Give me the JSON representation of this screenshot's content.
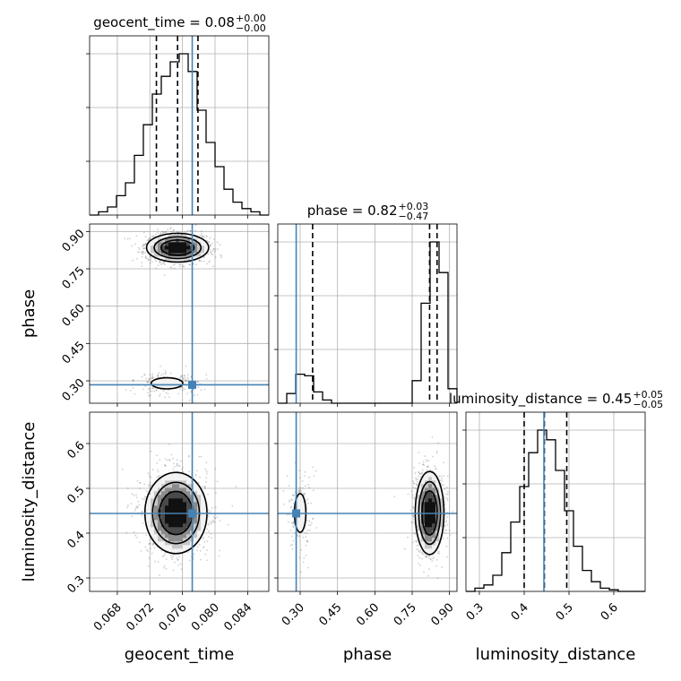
{
  "chart_data": {
    "type": "corner",
    "parameters": [
      "geocent_time",
      "phase",
      "luminosity_distance"
    ],
    "truth": {
      "geocent_time": 0.0772,
      "phase": 0.284,
      "luminosity_distance": 0.444
    },
    "titles": [
      {
        "label": "geocent_time = 0.08",
        "sup": "+0.00",
        "sub": "−0.00"
      },
      {
        "label": "phase = 0.82",
        "sup": "+0.03",
        "sub": "−0.47"
      },
      {
        "label": "luminosity_distance = 0.45",
        "sup": "+0.05",
        "sub": "−0.05"
      }
    ],
    "axes": {
      "geocent_time": {
        "range": [
          0.0646,
          0.0866
        ],
        "ticks": [
          0.068,
          0.072,
          0.076,
          0.08,
          0.084
        ],
        "tick_labels": [
          "0.068",
          "0.072",
          "0.076",
          "0.080",
          "0.084"
        ]
      },
      "phase": {
        "range": [
          0.21,
          0.93
        ],
        "ticks": [
          0.3,
          0.45,
          0.6,
          0.75,
          0.9
        ],
        "tick_labels": [
          "0.30",
          "0.45",
          "0.60",
          "0.75",
          "0.90"
        ]
      },
      "luminosity_distance": {
        "range": [
          0.27,
          0.67
        ],
        "ticks": [
          0.3,
          0.4,
          0.5,
          0.6
        ],
        "tick_labels": [
          "0.3",
          "0.4",
          "0.5",
          "0.6"
        ]
      }
    },
    "histograms": {
      "geocent_time": {
        "edges": [
          0.0646,
          0.0657,
          0.0668,
          0.0679,
          0.069,
          0.0701,
          0.0712,
          0.0723,
          0.0734,
          0.0745,
          0.0756,
          0.0767,
          0.0778,
          0.0789,
          0.08,
          0.0811,
          0.0822,
          0.0833,
          0.0844,
          0.0855,
          0.0866
        ],
        "counts": [
          0.0,
          0.02,
          0.05,
          0.12,
          0.2,
          0.37,
          0.56,
          0.75,
          0.86,
          0.95,
          1.0,
          0.89,
          0.65,
          0.45,
          0.3,
          0.16,
          0.08,
          0.04,
          0.02,
          0.0
        ],
        "quantiles": [
          0.0728,
          0.0754,
          0.0779
        ]
      },
      "phase": {
        "edges": [
          0.21,
          0.246,
          0.282,
          0.318,
          0.354,
          0.39,
          0.426,
          0.462,
          0.498,
          0.534,
          0.57,
          0.606,
          0.642,
          0.678,
          0.714,
          0.75,
          0.786,
          0.822,
          0.858,
          0.894,
          0.93
        ],
        "counts": [
          0.0,
          0.06,
          0.18,
          0.17,
          0.07,
          0.02,
          0.0,
          0.0,
          0.0,
          0.0,
          0.0,
          0.0,
          0.0,
          0.0,
          0.0,
          0.14,
          0.62,
          1.0,
          0.81,
          0.09
        ],
        "quantiles": [
          0.35,
          0.82,
          0.85
        ]
      },
      "luminosity_distance": {
        "edges": [
          0.27,
          0.29,
          0.31,
          0.33,
          0.35,
          0.37,
          0.39,
          0.41,
          0.43,
          0.45,
          0.47,
          0.49,
          0.51,
          0.53,
          0.55,
          0.57,
          0.59,
          0.61,
          0.63,
          0.65,
          0.67
        ],
        "counts": [
          0.0,
          0.02,
          0.04,
          0.1,
          0.24,
          0.43,
          0.65,
          0.86,
          1.0,
          0.94,
          0.75,
          0.5,
          0.28,
          0.13,
          0.06,
          0.02,
          0.01,
          0.0,
          0.0,
          0.0
        ],
        "quantiles": [
          0.4,
          0.445,
          0.495
        ]
      }
    },
    "density_2d": [
      {
        "x": "geocent_time",
        "y": "phase",
        "modes": [
          {
            "cx": 0.0754,
            "cy": 0.835,
            "sx": 0.00185,
            "sy": 0.028,
            "weight": 0.86
          },
          {
            "cx": 0.0741,
            "cy": 0.29,
            "sx": 0.0019,
            "sy": 0.022,
            "weight": 0.14
          }
        ]
      },
      {
        "x": "geocent_time",
        "y": "luminosity_distance",
        "modes": [
          {
            "cx": 0.0752,
            "cy": 0.445,
            "sx": 0.00185,
            "sy": 0.044,
            "weight": 1.0
          }
        ]
      },
      {
        "x": "phase",
        "y": "luminosity_distance",
        "modes": [
          {
            "cx": 0.82,
            "cy": 0.445,
            "sx": 0.028,
            "sy": 0.045,
            "weight": 0.86
          },
          {
            "cx": 0.3,
            "cy": 0.445,
            "sx": 0.024,
            "sy": 0.045,
            "weight": 0.14
          }
        ]
      }
    ],
    "colors": {
      "truth": "#4682b4",
      "hist": "#000000",
      "grid": "#b0b0b0",
      "samples": "#555555"
    },
    "grid": true
  }
}
